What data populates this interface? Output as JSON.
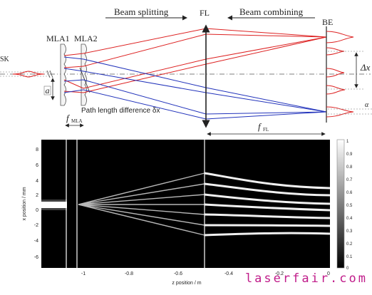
{
  "diagram": {
    "arrow_left_label": "Beam splitting",
    "arrow_right_label": "Beam combining",
    "fl_label": "FL",
    "be_label": "BE",
    "mla1_label": "MLA1",
    "mla2_label": "MLA2",
    "sk_label": "SK",
    "a_label": "a",
    "f_mla_main": "f",
    "f_mla_sub": "MLA",
    "f_fl_main": "f",
    "f_fl_sub": "FL",
    "path_diff_label": "Path length difference δx",
    "delta_x_label": "Δx",
    "alpha_label": "α",
    "colors": {
      "red_rays": "#dd2222",
      "blue_rays": "#2233bb",
      "axis": "#555555"
    }
  },
  "heatmap": {
    "xlabel": "z position / m",
    "ylabel": "x position / mm",
    "y_ticks": [
      "8",
      "6",
      "4",
      "2",
      "0",
      "-2",
      "-4",
      "-6"
    ],
    "x_ticks": [
      "-1",
      "-0.8",
      "-0.6",
      "-0.4",
      "-0.2",
      "0"
    ],
    "colorbar_ticks": [
      "1",
      "0.9",
      "0.8",
      "0.7",
      "0.6",
      "0.5",
      "0.4",
      "0.3",
      "0.2",
      "0.1",
      "0"
    ],
    "colormap": "gray"
  },
  "watermark": "laserfair.com"
}
